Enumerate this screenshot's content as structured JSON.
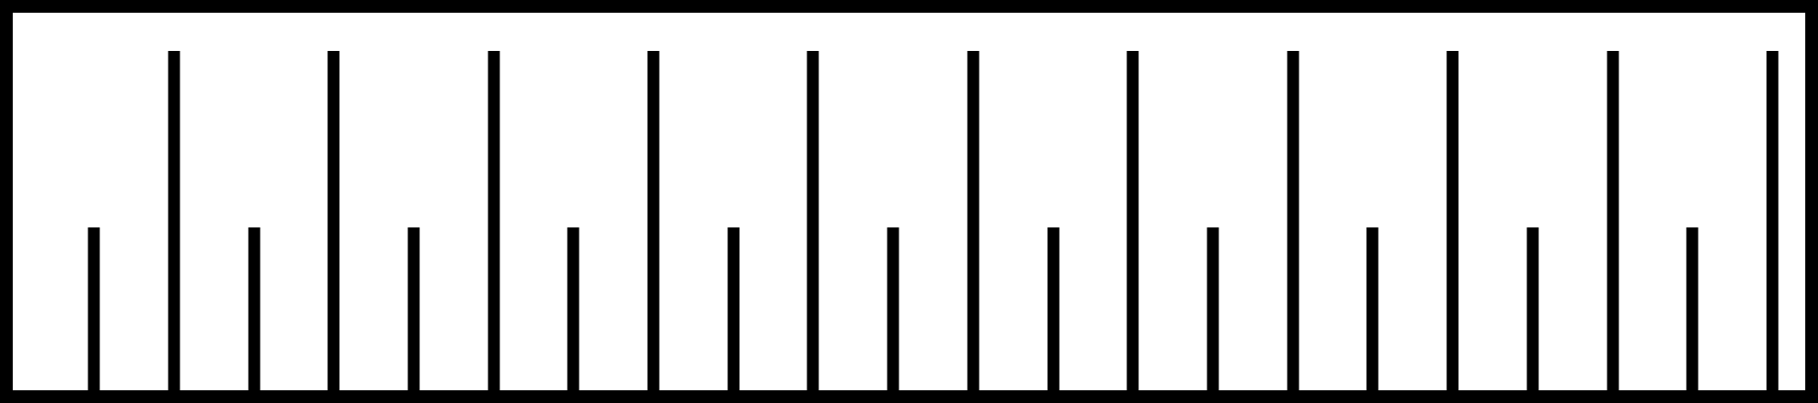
{
  "ruler": {
    "stroke_color": "#000000",
    "background_color": "#ffffff",
    "tick_pattern": [
      "short",
      "long",
      "short",
      "long",
      "short",
      "long",
      "short",
      "long",
      "short",
      "long",
      "short",
      "long",
      "short",
      "long",
      "short",
      "long",
      "short",
      "long",
      "short",
      "long",
      "short",
      "long"
    ]
  }
}
